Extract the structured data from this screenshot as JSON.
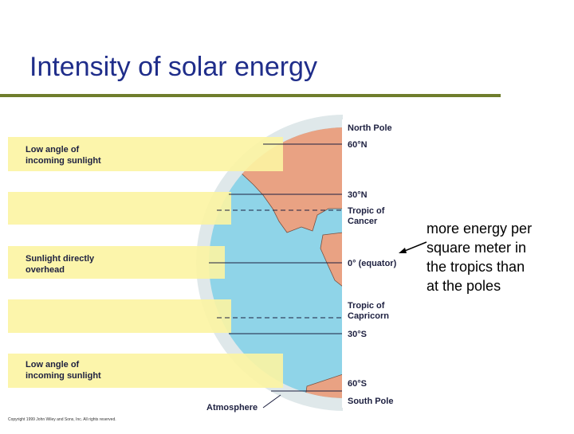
{
  "title": "Intensity of solar energy",
  "diagram": {
    "band_labels": [
      [
        "Low angle of",
        "incoming sunlight"
      ],
      [
        "Sunlight directly",
        "overhead"
      ],
      [
        "Low angle of",
        "incoming sunlight"
      ]
    ],
    "latitudes": [
      "North Pole",
      "60°N",
      "30°N",
      "Tropic of",
      "Cancer",
      "0° (equator)",
      "Tropic of",
      "Capricorn",
      "30°S",
      "60°S",
      "South Pole"
    ],
    "atmosphere": "Atmosphere",
    "copyright": "Copyright 1999 John Wiley and Sons, Inc. All rights reserved."
  },
  "annotation": {
    "lines": [
      "more energy per",
      "square meter in",
      "the tropics than",
      "at the poles"
    ]
  }
}
